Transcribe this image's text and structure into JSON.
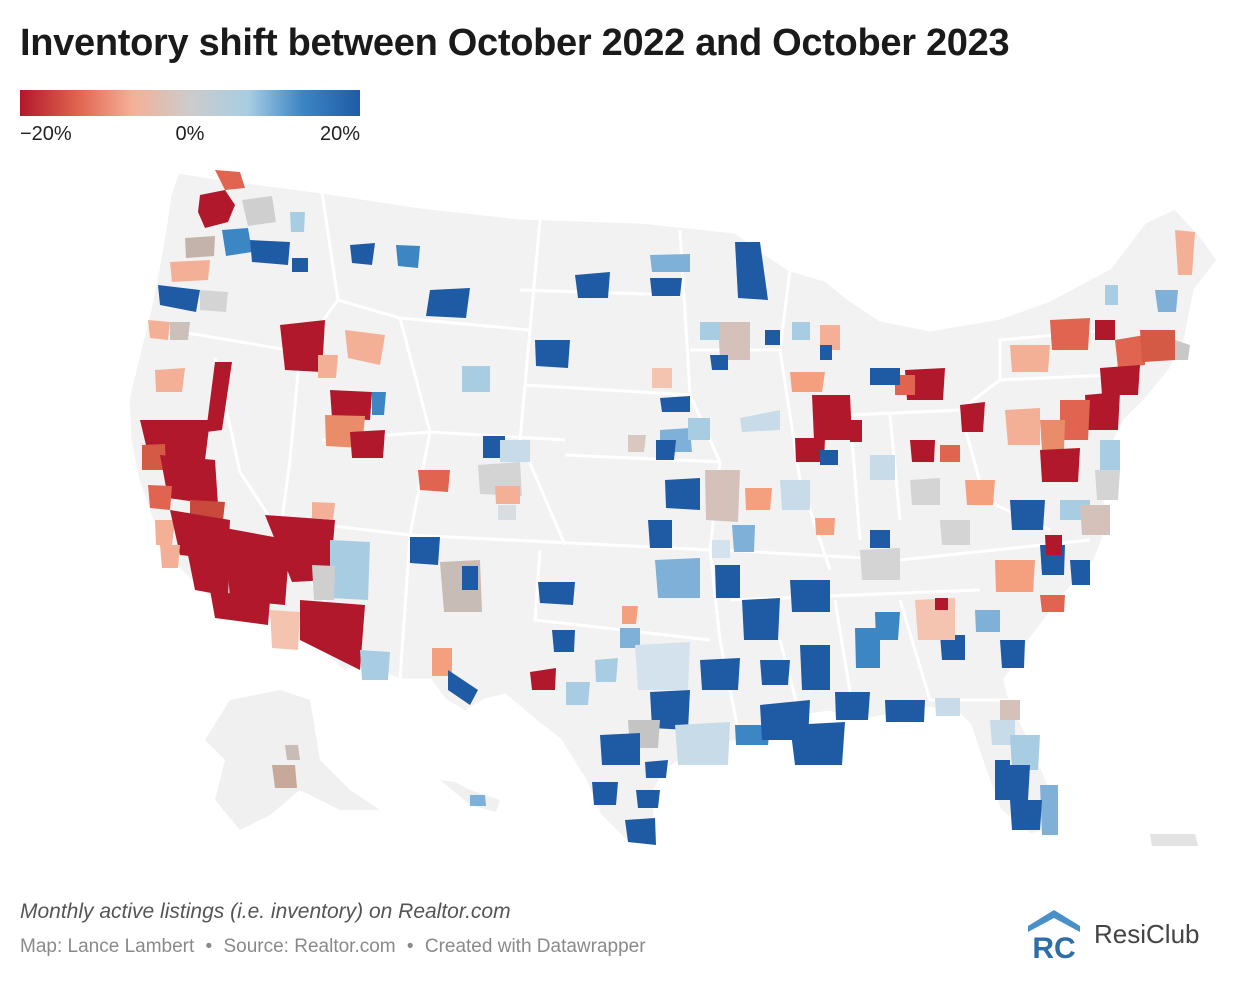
{
  "title": "Inventory shift between October 2022 and October 2023",
  "legend": {
    "min_label": "−20%",
    "mid_label": "0%",
    "max_label": "20%",
    "min_value": -20,
    "max_value": 20,
    "colors": [
      "#b2182b",
      "#e0644f",
      "#f4b096",
      "#cccccc",
      "#a8cde3",
      "#3c86c4",
      "#1f5ba5"
    ]
  },
  "map": {
    "type": "choropleth",
    "metric": "percent change in monthly active listings",
    "background_color": "#f2f2f2",
    "border_color": "#ffffff"
  },
  "footer": {
    "note": "Monthly active listings (i.e. inventory) on Realtor.com",
    "map_credit": "Map: Lance Lambert",
    "source": "Source: Realtor.com",
    "created_with": "Created with Datawrapper",
    "separator": "•"
  },
  "brand": {
    "name": "ResiClub",
    "logo_letters": "RC",
    "colors": [
      "#8bbbe0",
      "#4a90c8",
      "#2d6ea8"
    ]
  }
}
